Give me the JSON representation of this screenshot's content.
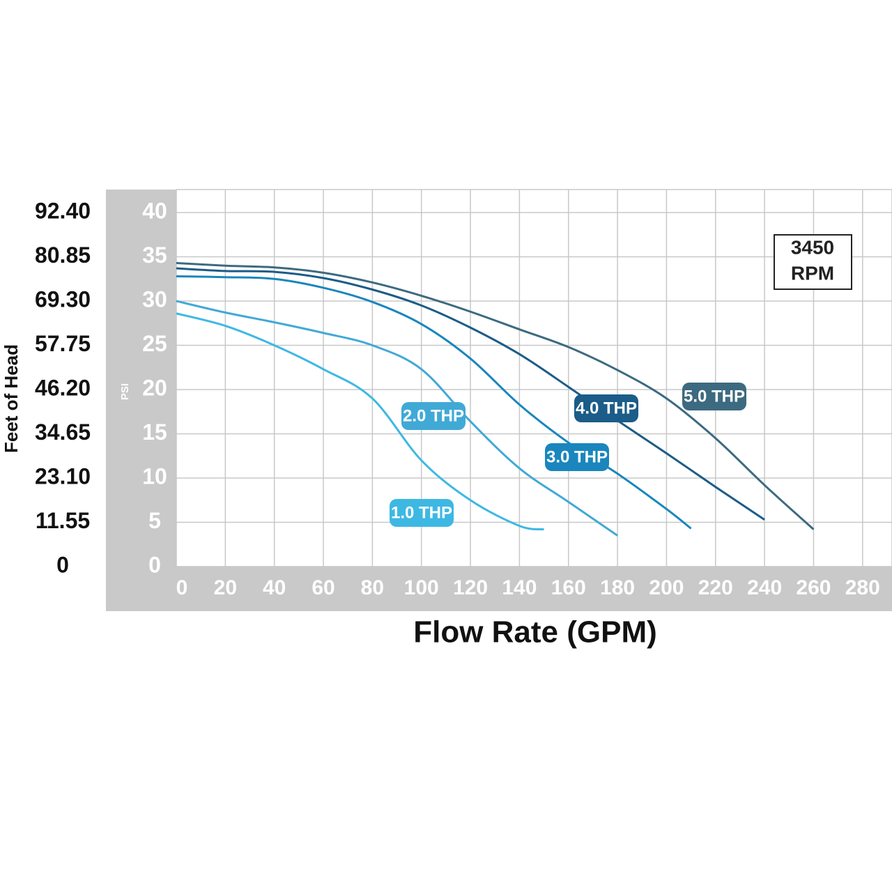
{
  "chart_data": {
    "type": "line",
    "annotation": [
      "3450",
      "RPM"
    ],
    "xlabel": "Flow Rate (GPM)",
    "ylabel": "PSI",
    "y2label": "Feet of Head",
    "xlim": [
      0,
      292
    ],
    "ylim": [
      0,
      42.6
    ],
    "y2lim": [
      0,
      98.4
    ],
    "xticks": [
      0,
      20,
      40,
      60,
      80,
      100,
      120,
      140,
      160,
      180,
      200,
      220,
      240,
      260,
      280
    ],
    "yticks": [
      0,
      5,
      10,
      15,
      20,
      25,
      30,
      35,
      40
    ],
    "y2ticks": [
      0,
      11.55,
      {
        "value": 23.1,
        "label": "23.10"
      },
      34.65,
      {
        "value": 46.2,
        "label": "46.20"
      },
      57.75,
      {
        "value": 69.3,
        "label": "69.30"
      },
      80.85,
      {
        "value": 92.4,
        "label": "92.40"
      }
    ],
    "grid": true,
    "series": [
      {
        "name": "1.0 THP",
        "color": "#3db8e3",
        "x": [
          0,
          20,
          40,
          60,
          80,
          100,
          120,
          140,
          150
        ],
        "values": [
          28.6,
          27.2,
          25,
          22.3,
          19,
          12,
          7.5,
          4.6,
          4.2
        ]
      },
      {
        "name": "2.0 THP",
        "color": "#41a9d6",
        "x": [
          0,
          20,
          40,
          60,
          80,
          100,
          120,
          140,
          160,
          180
        ],
        "values": [
          30,
          28.7,
          27.6,
          26.4,
          25,
          22.3,
          16.4,
          11.1,
          7.3,
          3.5
        ]
      },
      {
        "name": "3.0 THP",
        "color": "#1a86bd",
        "x": [
          0,
          20,
          40,
          60,
          80,
          100,
          120,
          140,
          160,
          180,
          200,
          210
        ],
        "values": [
          32.8,
          32.7,
          32.5,
          31.5,
          29.9,
          27.4,
          23.5,
          18.3,
          14,
          10.5,
          6.5,
          4.3
        ]
      },
      {
        "name": "4.0 THP",
        "color": "#1b5c88",
        "x": [
          0,
          20,
          40,
          60,
          80,
          100,
          120,
          140,
          160,
          180,
          200,
          220,
          240
        ],
        "values": [
          33.7,
          33.4,
          33.3,
          32.6,
          31.3,
          29.5,
          27,
          24,
          20.3,
          16.5,
          12.8,
          9,
          5.3
        ]
      },
      {
        "name": "5.0 THP",
        "color": "#3c6a80",
        "x": [
          0,
          20,
          40,
          60,
          80,
          100,
          120,
          140,
          160,
          180,
          200,
          220,
          240,
          260
        ],
        "values": [
          34.3,
          34,
          33.8,
          33.2,
          32.1,
          30.6,
          28.8,
          26.8,
          24.8,
          22.2,
          19,
          14.5,
          9.2,
          4.2
        ]
      }
    ]
  }
}
